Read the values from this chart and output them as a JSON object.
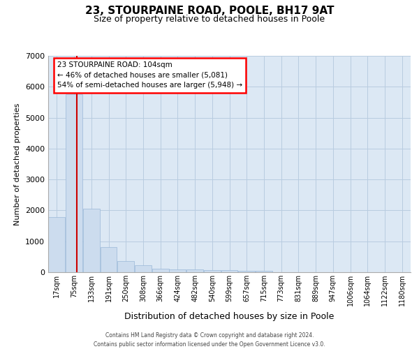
{
  "title_line1": "23, STOURPAINE ROAD, POOLE, BH17 9AT",
  "title_line2": "Size of property relative to detached houses in Poole",
  "xlabel": "Distribution of detached houses by size in Poole",
  "ylabel": "Number of detached properties",
  "bar_color": "#ccdcee",
  "bar_edge_color": "#9ab8d8",
  "grid_color": "#b8cce0",
  "background_color": "#dce8f4",
  "bin_labels": [
    "17sqm",
    "75sqm",
    "133sqm",
    "191sqm",
    "250sqm",
    "308sqm",
    "366sqm",
    "424sqm",
    "482sqm",
    "540sqm",
    "599sqm",
    "657sqm",
    "715sqm",
    "773sqm",
    "831sqm",
    "889sqm",
    "947sqm",
    "1006sqm",
    "1064sqm",
    "1122sqm",
    "1180sqm"
  ],
  "bar_values": [
    1780,
    5750,
    2050,
    820,
    370,
    225,
    115,
    100,
    80,
    65,
    65,
    55,
    55,
    0,
    0,
    0,
    0,
    0,
    0,
    0,
    0
  ],
  "red_line_x": 1.16,
  "annotation_title": "23 STOURPAINE ROAD: 104sqm",
  "annotation_line1": "← 46% of detached houses are smaller (5,081)",
  "annotation_line2": "54% of semi-detached houses are larger (5,948) →",
  "annotation_box_color": "white",
  "annotation_box_edge": "red",
  "red_line_color": "#cc0000",
  "ylim": [
    0,
    7000
  ],
  "yticks": [
    0,
    1000,
    2000,
    3000,
    4000,
    5000,
    6000,
    7000
  ],
  "footer_line1": "Contains HM Land Registry data © Crown copyright and database right 2024.",
  "footer_line2": "Contains public sector information licensed under the Open Government Licence v3.0."
}
